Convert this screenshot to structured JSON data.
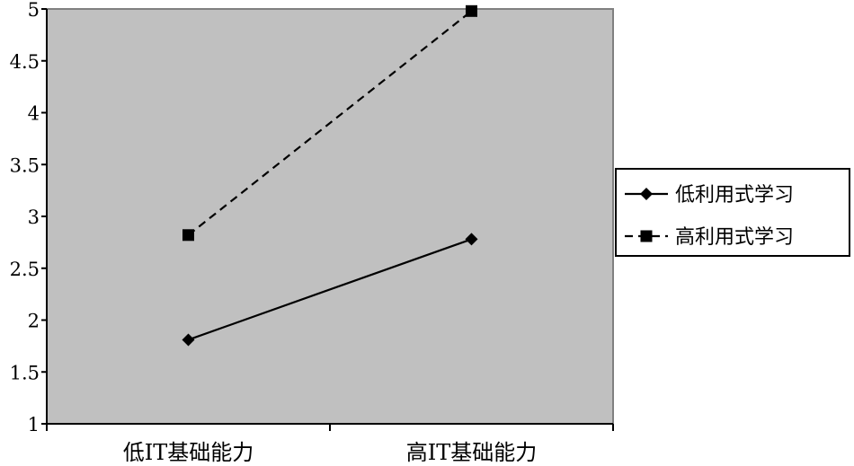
{
  "chart_data": {
    "type": "line",
    "categories": [
      "低IT基础能力",
      "高IT基础能力"
    ],
    "series": [
      {
        "name": "低利用式学习",
        "values": [
          1.81,
          2.78
        ],
        "marker": "diamond",
        "dash": "solid",
        "color": "#000000"
      },
      {
        "name": "高利用式学习",
        "values": [
          2.82,
          4.98
        ],
        "marker": "square",
        "dash": "dashed",
        "color": "#000000"
      }
    ],
    "ylim": [
      1,
      5
    ],
    "yticks": [
      "1",
      "1.5",
      "2",
      "2.5",
      "3",
      "3.5",
      "4",
      "4.5",
      "5"
    ],
    "title": "",
    "xlabel": "",
    "ylabel": "",
    "legend": "right",
    "grid": false,
    "colors": {
      "plot_bg": "#c0c0c0",
      "plot_border": "#808080",
      "axis": "#000000"
    }
  }
}
